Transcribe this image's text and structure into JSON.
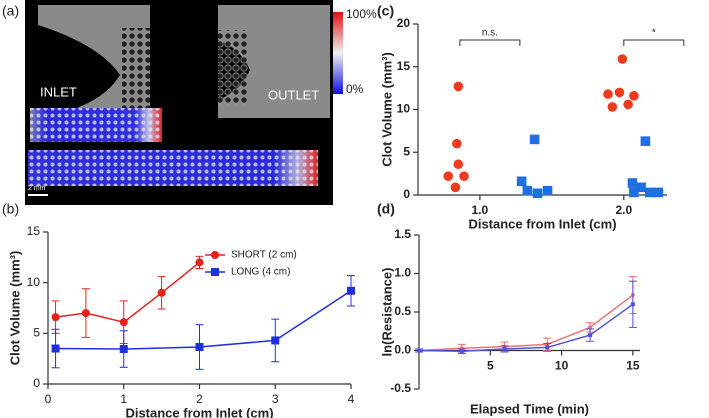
{
  "panel_a": {
    "label": "(a)",
    "inlet_label": "INLET",
    "outlet_label": "OUTLET",
    "colorbar_max": "100%",
    "colorbar_min": "0%",
    "scale_bar": "2 mm"
  },
  "chart_data": [
    {
      "type": "line",
      "label": "(b)",
      "x_label": "Distance from Inlet (cm)",
      "y_label": "Clot Volume (mm³)",
      "xlim": [
        0,
        4
      ],
      "xticks": [
        0,
        1,
        2,
        3,
        4
      ],
      "ylim": [
        0,
        15
      ],
      "yticks": [
        0,
        5,
        10,
        15
      ],
      "legend": "top",
      "series": [
        {
          "name": "SHORT (2 cm)",
          "color": "#e8201c",
          "marker": "circle",
          "x": [
            0.1,
            0.5,
            1,
            1.5,
            2
          ],
          "values": [
            6.6,
            7.0,
            6.1,
            9.0,
            12.0
          ],
          "errors": [
            1.6,
            2.4,
            2.1,
            1.6,
            0.6
          ]
        },
        {
          "name": "LONG (4 cm)",
          "color": "#1f30e0",
          "marker": "square",
          "x": [
            0.1,
            1,
            2,
            3,
            4
          ],
          "values": [
            3.5,
            3.45,
            3.65,
            4.3,
            9.2
          ],
          "errors": [
            1.9,
            1.8,
            2.2,
            2.1,
            1.5
          ]
        }
      ]
    },
    {
      "type": "scatter",
      "label": "(c)",
      "x_label": "Distance from Inlet (cm)",
      "y_label": "Clot Volume (mm³)",
      "xlim": [
        0.57,
        2.3
      ],
      "xticks": [
        {
          "value": 1,
          "label": "1.0"
        },
        {
          "value": 2,
          "label": "2.0"
        }
      ],
      "ylim": [
        0,
        20
      ],
      "yticks": [
        0,
        5,
        10,
        15,
        20
      ],
      "annotations": [
        "n.s.",
        "*"
      ],
      "series": [
        {
          "color": "#f03a1e",
          "marker": "circle",
          "x": [
            0.85,
            0.84,
            0.85,
            0.78,
            0.89,
            0.83,
            1.99,
            1.89,
            1.97,
            2.07,
            1.92,
            2.03
          ],
          "values": [
            12.7,
            6.0,
            3.6,
            2.2,
            2.2,
            0.9,
            15.9,
            11.8,
            12.0,
            11.6,
            10.3,
            10.6
          ]
        },
        {
          "color": "#1e6fe0",
          "marker": "square",
          "x": [
            1.38,
            1.29,
            1.33,
            1.4,
            1.47,
            2.15,
            2.06,
            2.12,
            2.07,
            2.18,
            2.24
          ],
          "values": [
            6.5,
            1.6,
            0.5,
            0.2,
            0.5,
            6.3,
            1.4,
            0.9,
            0.3,
            0.3,
            0.3
          ]
        }
      ]
    },
    {
      "type": "line",
      "label": "(d)",
      "x_label": "Elapsed Time (min)",
      "y_label": "ln(Resistance)",
      "x_axis": "zero",
      "xlim": [
        0,
        15.5
      ],
      "xticks": [
        5,
        10,
        15
      ],
      "ylim": [
        -0.5,
        1.5
      ],
      "yticks": [
        -0.5,
        {
          "value": 0,
          "label": "0.0"
        },
        0.5,
        {
          "value": 1,
          "label": "1.0"
        },
        1.5
      ],
      "series": [
        {
          "color": "#f07070",
          "marker": "circle",
          "x": [
            0,
            3,
            6,
            9,
            12,
            15
          ],
          "values": [
            0,
            0.03,
            0.05,
            0.08,
            0.3,
            0.72
          ],
          "errors": [
            0.02,
            0.05,
            0.06,
            0.08,
            0.06,
            0.24
          ]
        },
        {
          "color": "#5050e0",
          "marker": "square",
          "x": [
            0,
            3,
            6,
            9,
            12,
            15
          ],
          "values": [
            0,
            -0.01,
            0.02,
            0.04,
            0.2,
            0.6
          ],
          "errors": [
            0.02,
            0.03,
            0.04,
            0.05,
            0.08,
            0.3
          ]
        }
      ]
    }
  ]
}
